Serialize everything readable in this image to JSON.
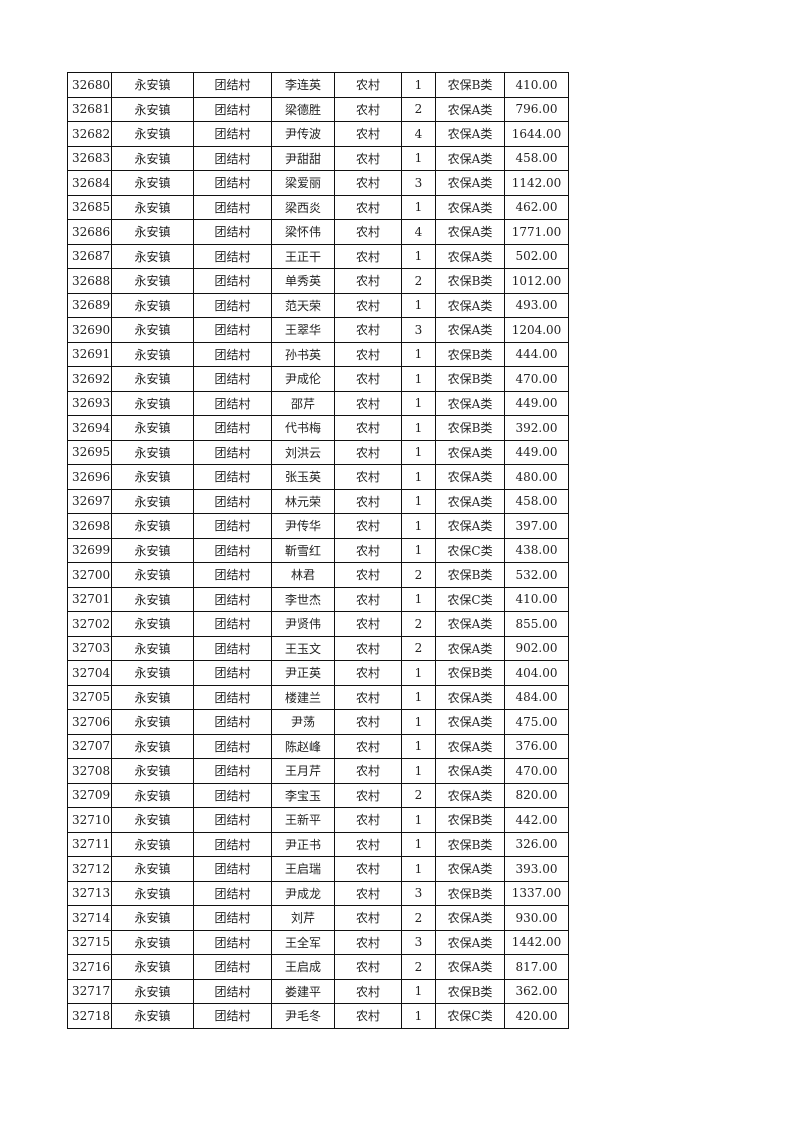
{
  "table": {
    "rows": [
      [
        "32680",
        "永安镇",
        "团结村",
        "李连英",
        "农村",
        "1",
        "农保B类",
        "410.00"
      ],
      [
        "32681",
        "永安镇",
        "团结村",
        "梁德胜",
        "农村",
        "2",
        "农保A类",
        "796.00"
      ],
      [
        "32682",
        "永安镇",
        "团结村",
        "尹传波",
        "农村",
        "4",
        "农保A类",
        "1644.00"
      ],
      [
        "32683",
        "永安镇",
        "团结村",
        "尹甜甜",
        "农村",
        "1",
        "农保A类",
        "458.00"
      ],
      [
        "32684",
        "永安镇",
        "团结村",
        "梁爱丽",
        "农村",
        "3",
        "农保A类",
        "1142.00"
      ],
      [
        "32685",
        "永安镇",
        "团结村",
        "梁西炎",
        "农村",
        "1",
        "农保A类",
        "462.00"
      ],
      [
        "32686",
        "永安镇",
        "团结村",
        "梁怀伟",
        "农村",
        "4",
        "农保A类",
        "1771.00"
      ],
      [
        "32687",
        "永安镇",
        "团结村",
        "王正干",
        "农村",
        "1",
        "农保A类",
        "502.00"
      ],
      [
        "32688",
        "永安镇",
        "团结村",
        "单秀英",
        "农村",
        "2",
        "农保B类",
        "1012.00"
      ],
      [
        "32689",
        "永安镇",
        "团结村",
        "范天荣",
        "农村",
        "1",
        "农保A类",
        "493.00"
      ],
      [
        "32690",
        "永安镇",
        "团结村",
        "王翠华",
        "农村",
        "3",
        "农保A类",
        "1204.00"
      ],
      [
        "32691",
        "永安镇",
        "团结村",
        "孙书英",
        "农村",
        "1",
        "农保B类",
        "444.00"
      ],
      [
        "32692",
        "永安镇",
        "团结村",
        "尹成伦",
        "农村",
        "1",
        "农保B类",
        "470.00"
      ],
      [
        "32693",
        "永安镇",
        "团结村",
        "邵芹",
        "农村",
        "1",
        "农保A类",
        "449.00"
      ],
      [
        "32694",
        "永安镇",
        "团结村",
        "代书梅",
        "农村",
        "1",
        "农保B类",
        "392.00"
      ],
      [
        "32695",
        "永安镇",
        "团结村",
        "刘洪云",
        "农村",
        "1",
        "农保A类",
        "449.00"
      ],
      [
        "32696",
        "永安镇",
        "团结村",
        "张玉英",
        "农村",
        "1",
        "农保A类",
        "480.00"
      ],
      [
        "32697",
        "永安镇",
        "团结村",
        "林元荣",
        "农村",
        "1",
        "农保A类",
        "458.00"
      ],
      [
        "32698",
        "永安镇",
        "团结村",
        "尹传华",
        "农村",
        "1",
        "农保A类",
        "397.00"
      ],
      [
        "32699",
        "永安镇",
        "团结村",
        "靳雪红",
        "农村",
        "1",
        "农保C类",
        "438.00"
      ],
      [
        "32700",
        "永安镇",
        "团结村",
        "林君",
        "农村",
        "2",
        "农保B类",
        "532.00"
      ],
      [
        "32701",
        "永安镇",
        "团结村",
        "李世杰",
        "农村",
        "1",
        "农保C类",
        "410.00"
      ],
      [
        "32702",
        "永安镇",
        "团结村",
        "尹贤伟",
        "农村",
        "2",
        "农保A类",
        "855.00"
      ],
      [
        "32703",
        "永安镇",
        "团结村",
        "王玉文",
        "农村",
        "2",
        "农保A类",
        "902.00"
      ],
      [
        "32704",
        "永安镇",
        "团结村",
        "尹正英",
        "农村",
        "1",
        "农保B类",
        "404.00"
      ],
      [
        "32705",
        "永安镇",
        "团结村",
        "楼建兰",
        "农村",
        "1",
        "农保A类",
        "484.00"
      ],
      [
        "32706",
        "永安镇",
        "团结村",
        "尹荡",
        "农村",
        "1",
        "农保A类",
        "475.00"
      ],
      [
        "32707",
        "永安镇",
        "团结村",
        "陈赵峰",
        "农村",
        "1",
        "农保A类",
        "376.00"
      ],
      [
        "32708",
        "永安镇",
        "团结村",
        "王月芹",
        "农村",
        "1",
        "农保A类",
        "470.00"
      ],
      [
        "32709",
        "永安镇",
        "团结村",
        "李宝玉",
        "农村",
        "2",
        "农保A类",
        "820.00"
      ],
      [
        "32710",
        "永安镇",
        "团结村",
        "王新平",
        "农村",
        "1",
        "农保B类",
        "442.00"
      ],
      [
        "32711",
        "永安镇",
        "团结村",
        "尹正书",
        "农村",
        "1",
        "农保B类",
        "326.00"
      ],
      [
        "32712",
        "永安镇",
        "团结村",
        "王启瑞",
        "农村",
        "1",
        "农保A类",
        "393.00"
      ],
      [
        "32713",
        "永安镇",
        "团结村",
        "尹成龙",
        "农村",
        "3",
        "农保B类",
        "1337.00"
      ],
      [
        "32714",
        "永安镇",
        "团结村",
        "刘芹",
        "农村",
        "2",
        "农保A类",
        "930.00"
      ],
      [
        "32715",
        "永安镇",
        "团结村",
        "王全军",
        "农村",
        "3",
        "农保A类",
        "1442.00"
      ],
      [
        "32716",
        "永安镇",
        "团结村",
        "王启成",
        "农村",
        "2",
        "农保A类",
        "817.00"
      ],
      [
        "32717",
        "永安镇",
        "团结村",
        "娄建平",
        "农村",
        "1",
        "农保B类",
        "362.00"
      ],
      [
        "32718",
        "永安镇",
        "团结村",
        "尹毛冬",
        "农村",
        "1",
        "农保C类",
        "420.00"
      ]
    ]
  }
}
